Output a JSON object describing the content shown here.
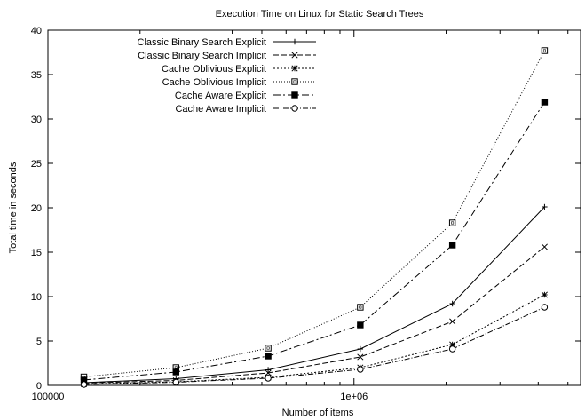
{
  "chart_data": {
    "type": "line",
    "title": "Execution Time on Linux for Static Search Trees",
    "xlabel": "Number of items",
    "ylabel": "Total time in seconds",
    "x_scale": "log",
    "xlim": [
      100000,
      5500000
    ],
    "ylim": [
      0,
      40
    ],
    "x_ticks": [
      {
        "value": 100000,
        "label": "100000"
      },
      {
        "value": 1000000,
        "label": "1e+06"
      }
    ],
    "x_minor_ticks": [
      200000,
      300000,
      400000,
      500000,
      600000,
      700000,
      800000,
      900000,
      2000000,
      3000000,
      4000000,
      5000000
    ],
    "y_ticks": [
      0,
      5,
      10,
      15,
      20,
      25,
      30,
      35,
      40
    ],
    "grid": false,
    "legend_position": "top-left",
    "x": [
      131071,
      262143,
      524287,
      1048575,
      2097151,
      4194303
    ],
    "series": [
      {
        "name": "Classic Binary Search Explicit",
        "marker": "+",
        "dash": "",
        "values": [
          0.3,
          0.75,
          1.75,
          4.1,
          9.2,
          20.1
        ]
      },
      {
        "name": "Classic Binary Search Implicit",
        "marker": "x",
        "dash": "6,3",
        "values": [
          0.25,
          0.55,
          1.4,
          3.2,
          7.2,
          15.6
        ]
      },
      {
        "name": "Cache Oblivious Explicit",
        "marker": "*",
        "dash": "2,2",
        "values": [
          0.15,
          0.4,
          0.9,
          2.0,
          4.6,
          10.2
        ]
      },
      {
        "name": "Cache Oblivious Implicit",
        "marker": "square-open",
        "dash": "1,2",
        "values": [
          0.95,
          2.0,
          4.2,
          8.8,
          18.3,
          37.7
        ]
      },
      {
        "name": "Cache Aware Explicit",
        "marker": "square-filled",
        "dash": "8,3,2,3",
        "values": [
          0.6,
          1.5,
          3.3,
          6.8,
          15.8,
          31.9
        ]
      },
      {
        "name": "Cache Aware Implicit",
        "marker": "circle-open",
        "dash": "6,2,1,2",
        "values": [
          0.1,
          0.35,
          0.8,
          1.8,
          4.1,
          8.8
        ]
      }
    ]
  }
}
